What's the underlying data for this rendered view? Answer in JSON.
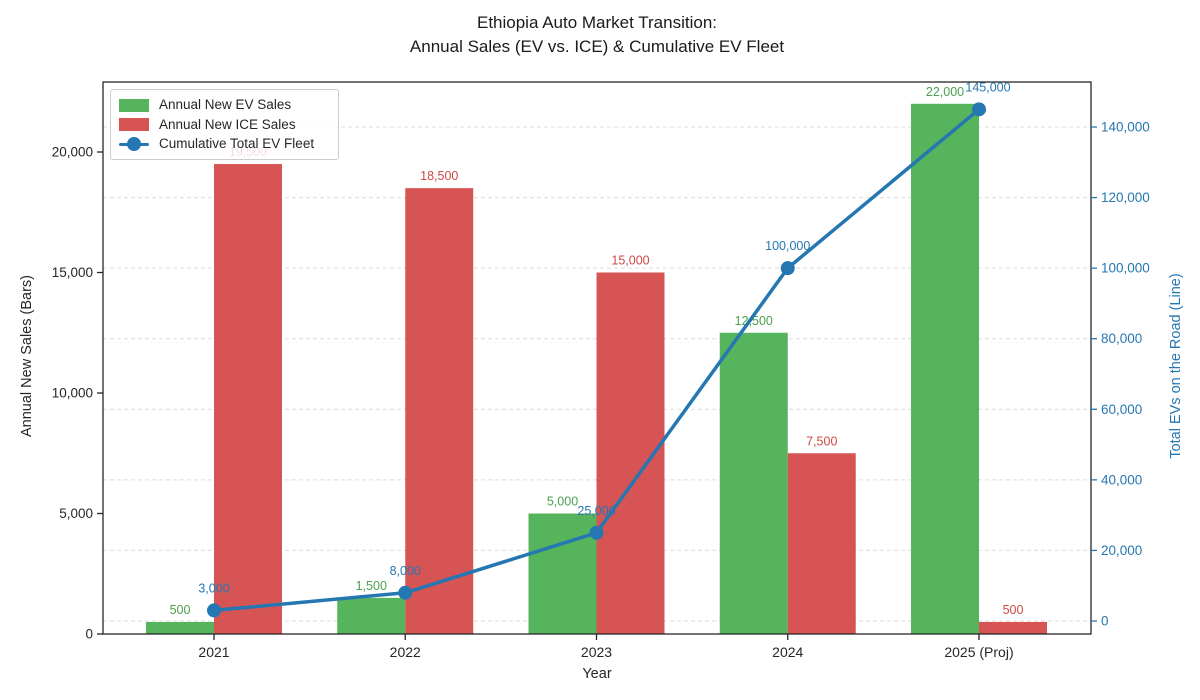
{
  "chart_data": {
    "type": "bar+line",
    "title_lines": [
      "Ethiopia Auto Market Transition:",
      "Annual Sales (EV vs. ICE) & Cumulative EV Fleet"
    ],
    "xlabel": "Year",
    "ylabel_left": "Annual New Sales (Bars)",
    "ylabel_right": "Total EVs on the Road (Line)",
    "categories": [
      "2021",
      "2022",
      "2023",
      "2024",
      "2025 (Proj)"
    ],
    "series": [
      {
        "name": "Annual New EV Sales",
        "type": "bar",
        "color": "#56b45c",
        "label_color": "#4aa04e",
        "values": [
          500,
          1500,
          5000,
          12500,
          22000
        ],
        "labels": [
          "500",
          "1,500",
          "5,000",
          "12,500",
          "22,000"
        ]
      },
      {
        "name": "Annual New ICE Sales",
        "type": "bar",
        "color": "#d75454",
        "label_color": "#cc4a45",
        "values": [
          19500,
          18500,
          15000,
          7500,
          500
        ],
        "labels": [
          "19,500",
          "18,500",
          "15,000",
          "7,500",
          "500"
        ]
      },
      {
        "name": "Cumulative Total EV Fleet",
        "type": "line",
        "color": "#2577b2",
        "label_color": "#2577b2",
        "values": [
          3000,
          8000,
          25000,
          100000,
          145000
        ],
        "labels": [
          "3,000",
          "8,000",
          "25,000",
          "100,000",
          "145,000"
        ]
      }
    ],
    "axes": {
      "left_ticks": {
        "values": [
          0,
          5000,
          10000,
          15000,
          20000
        ],
        "labels": [
          "0",
          "5,000",
          "10,000",
          "15,000",
          "20,000"
        ]
      },
      "right_ticks": {
        "values": [
          0,
          20000,
          40000,
          60000,
          80000,
          100000,
          120000,
          140000
        ],
        "labels": [
          "0",
          "20,000",
          "40,000",
          "60,000",
          "80,000",
          "100,000",
          "120,000",
          "140,000"
        ]
      },
      "ylim_left": [
        0,
        23000
      ],
      "ylim_right": [
        -3700,
        152700
      ]
    },
    "grid": "horizontal dashed gridlines at right-axis ticks",
    "legend_position": "upper left",
    "legend_note": "19,500 bar label partially hidden behind legend box"
  },
  "colors": {
    "background": "#ffffff",
    "spine": "#262626",
    "grid": "#dcdcdc",
    "tick_text": "#262626",
    "right_axis_text": "#2577b2",
    "title_text": "#1a1a1a",
    "legend_border": "#cccccc"
  }
}
